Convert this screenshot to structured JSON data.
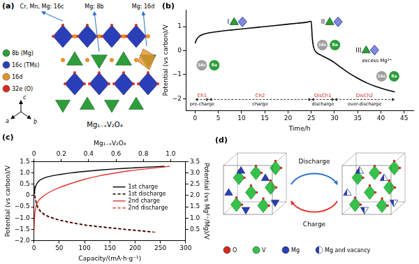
{
  "panels": {
    "a": {
      "title": "(a)",
      "site_labels": [
        "Cr, Mn, Mg: 16c",
        "Mg: 8b",
        "Mg: 16d"
      ],
      "keys": [
        {
          "label": "8b (Mg)",
          "color": "#2e9d3a"
        },
        {
          "label": "16c (TMs)",
          "color": "#2a3eb8"
        },
        {
          "label": "16d",
          "color": "#e8922a"
        },
        {
          "label": "32e (O)",
          "color": "#d62a1e"
        }
      ],
      "axes": [
        "a",
        "c",
        "b"
      ],
      "formula": "Mg₁₋ₓV₂O₄"
    },
    "d": {
      "title": "(d)",
      "arrow_labels": [
        "Discharge",
        "Charge"
      ],
      "keys": [
        {
          "label": "O",
          "color": "#d62a1e"
        },
        {
          "label": "V",
          "color": "#35c24a"
        },
        {
          "label": "Mg",
          "color": "#2a3eb8"
        },
        {
          "label": "Mg and vacancy",
          "color": "#2a3eb8"
        }
      ]
    }
  },
  "chart_data": [
    {
      "title": "(b)",
      "type": "line",
      "x_label": "Time/h",
      "y_label": "Potential (vs carbon)/V",
      "xlim": [
        -2,
        47
      ],
      "xticks": [
        0,
        5,
        10,
        15,
        20,
        25,
        30,
        35,
        40,
        45
      ],
      "ylim": [
        -2.5,
        1.7
      ],
      "yticks": [
        {
          "value": -2,
          "label": "−2"
        },
        {
          "value": -1,
          "label": "−1"
        },
        0,
        1
      ],
      "grid": false,
      "color": "#000000",
      "x": [
        0,
        0.3,
        0.8,
        1.5,
        2.5,
        4,
        6,
        8,
        11,
        14,
        17,
        20,
        22,
        24,
        25,
        25.2,
        25.5,
        26,
        27,
        28,
        29,
        30,
        31.5,
        33,
        35,
        37,
        39,
        41,
        43
      ],
      "values": [
        0.3,
        0.45,
        0.58,
        0.66,
        0.72,
        0.77,
        0.82,
        0.86,
        0.92,
        0.98,
        1.04,
        1.1,
        1.14,
        1.18,
        1.22,
        0.6,
        0.15,
        -0.05,
        -0.18,
        -0.28,
        -0.38,
        -0.5,
        -0.72,
        -0.92,
        -1.15,
        -1.35,
        -1.5,
        -1.62,
        -1.72
      ],
      "stages": [
        {
          "label": "Ch1",
          "phase": "pre-charge",
          "start": 0,
          "end": 3
        },
        {
          "label": "Ch2",
          "phase": "charge",
          "start": 3,
          "end": 25
        },
        {
          "label": "DisCh1",
          "phase": "discharge",
          "start": 25,
          "end": 30
        },
        {
          "label": "DisCh2",
          "phase": "over-discharge",
          "start": 30,
          "end": 43
        }
      ],
      "annotations": [
        "I",
        "II",
        "III",
        "excess Mg²⁺"
      ],
      "site_labels": [
        "16c",
        "8a"
      ]
    },
    {
      "title": "(c)",
      "type": "line",
      "x_label": "Capacity/(mA·h·g⁻¹)",
      "x2_label": "Mg₁₋ₓV₂O₄",
      "y_label": "Potential (vs carbon)/V",
      "y2_label": "Potential (vs Mg²⁺/Mg)/V",
      "xlim": [
        0,
        300
      ],
      "xticks": [
        0,
        50,
        100,
        150,
        200,
        250,
        300
      ],
      "x2lim": [
        0,
        1.11
      ],
      "x2ticks": [
        0,
        0.2,
        0.4,
        0.6,
        0.8,
        {
          "value": 1,
          "label": "1.0"
        }
      ],
      "ylim": [
        -2,
        1.5
      ],
      "yticks": [
        {
          "value": -2,
          "label": "−2.0"
        },
        {
          "value": -1.5,
          "label": "−1.5"
        },
        {
          "value": -1,
          "label": "−1.0"
        },
        {
          "value": -0.5,
          "label": "−0.5"
        },
        0,
        0.5,
        {
          "value": 1,
          "label": "1.0"
        },
        1.5
      ],
      "y2lim": [
        0,
        3.5
      ],
      "y2ticks": [
        0.5,
        {
          "value": 1,
          "label": "1.0"
        },
        1.5,
        {
          "value": 2,
          "label": "2.0"
        },
        2.5,
        {
          "value": 3,
          "label": "3.0"
        },
        3.5
      ],
      "grid": false,
      "legend": "center",
      "series": [
        {
          "name": "1st charge",
          "color": "#000000",
          "line_style": "solid",
          "x": [
            0,
            2,
            5,
            10,
            20,
            35,
            50,
            75,
            100,
            130,
            160,
            190,
            220,
            250,
            258
          ],
          "values": [
            0.05,
            0.3,
            0.5,
            0.65,
            0.78,
            0.87,
            0.93,
            1.01,
            1.07,
            1.13,
            1.18,
            1.22,
            1.26,
            1.29,
            1.3
          ]
        },
        {
          "name": "1st discharge",
          "color": "#000000",
          "line_style": "dashed",
          "x": [
            0,
            2,
            5,
            10,
            20,
            35,
            50,
            75,
            100,
            130,
            160,
            190,
            220,
            235
          ],
          "values": [
            0.45,
            0.0,
            -0.35,
            -0.6,
            -0.82,
            -0.98,
            -1.08,
            -1.2,
            -1.3,
            -1.38,
            -1.45,
            -1.52,
            -1.58,
            -1.62
          ]
        },
        {
          "name": "2nd charge",
          "color": "#e8322c",
          "line_style": "solid",
          "x": [
            0,
            1,
            3,
            6,
            10,
            20,
            35,
            50,
            75,
            100,
            130,
            160,
            190,
            220,
            250,
            268
          ],
          "values": [
            -1.55,
            -1.0,
            -0.6,
            -0.35,
            -0.2,
            0.0,
            0.2,
            0.35,
            0.55,
            0.72,
            0.88,
            1.0,
            1.1,
            1.18,
            1.25,
            1.3
          ]
        },
        {
          "name": "2nd discharge",
          "color": "#e8322c",
          "line_style": "dashed",
          "x": [
            0,
            2,
            5,
            10,
            20,
            35,
            50,
            75,
            100,
            130,
            160,
            190,
            220,
            240
          ],
          "values": [
            0.4,
            -0.05,
            -0.4,
            -0.65,
            -0.86,
            -1.0,
            -1.1,
            -1.22,
            -1.32,
            -1.4,
            -1.47,
            -1.54,
            -1.6,
            -1.63
          ]
        }
      ]
    }
  ]
}
